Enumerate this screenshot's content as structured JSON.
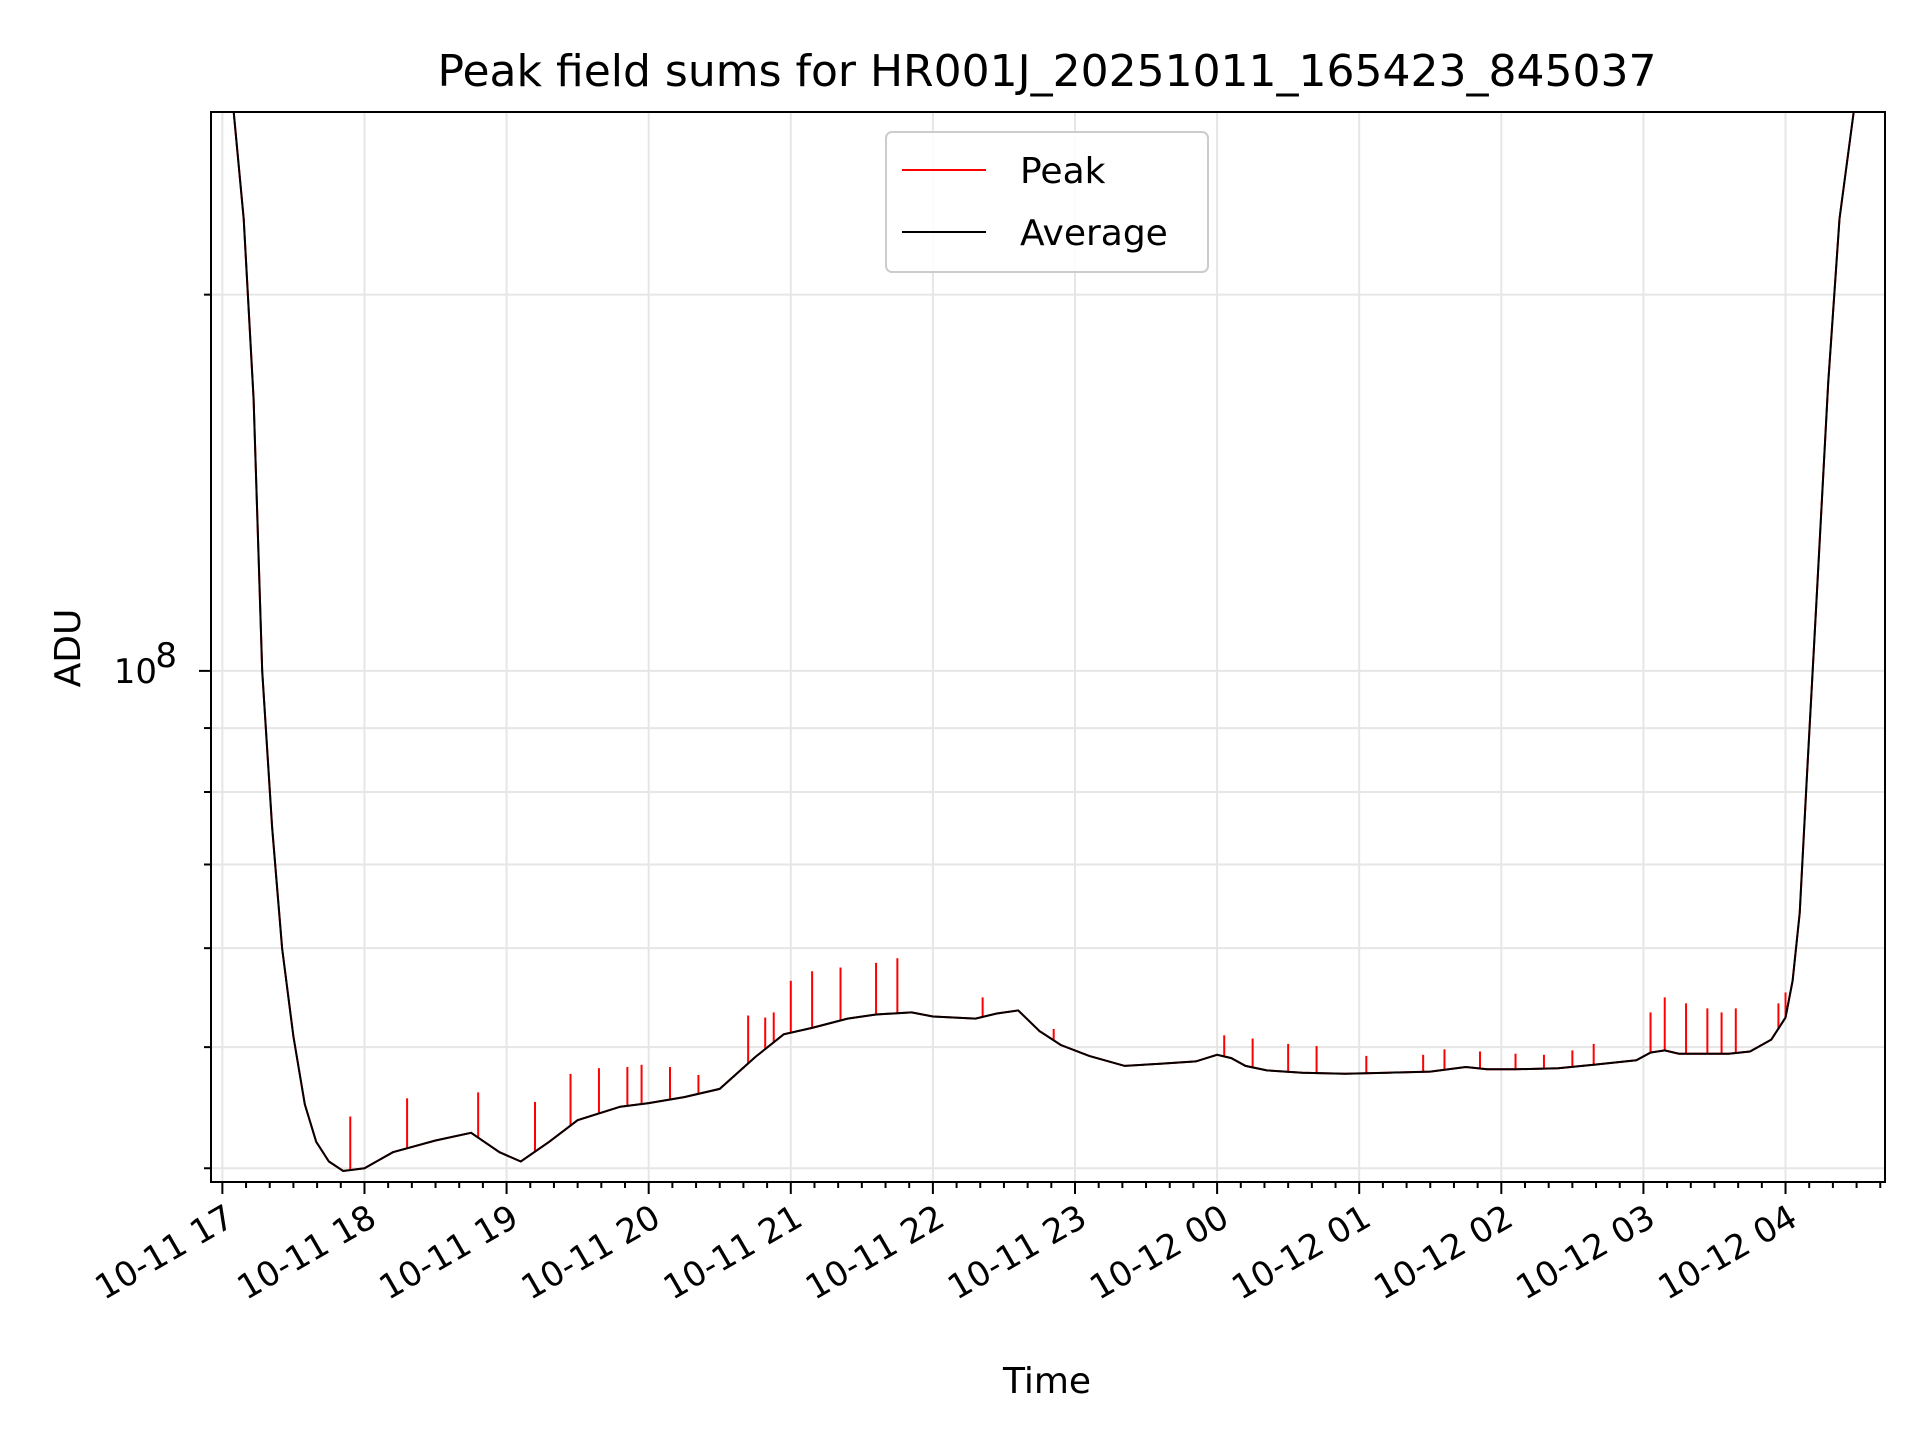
{
  "chart_data": {
    "type": "line",
    "title": "Peak field sums for HR001J_20251011_165423_845037",
    "xlabel": "Time",
    "ylabel": "ADU",
    "yscale": "log",
    "ylim": [
      39000000,
      280000000
    ],
    "xlim": [
      -0.08,
      11.7
    ],
    "grid": true,
    "legend_position": "top-center",
    "x_tick_labels": [
      "10-11 17",
      "10-11 18",
      "10-11 19",
      "10-11 20",
      "10-11 21",
      "10-11 22",
      "10-11 23",
      "10-12 00",
      "10-12 01",
      "10-12 02",
      "10-12 03",
      "10-12 04"
    ],
    "x_tick_values": [
      0,
      1,
      2,
      3,
      4,
      5,
      6,
      7,
      8,
      9,
      10,
      11
    ],
    "y_tick_labels": [
      {
        "base": "10",
        "exp": "8",
        "value": 100000000
      }
    ],
    "y_minor_ticks": [
      40000000,
      50000000,
      60000000,
      70000000,
      80000000,
      90000000,
      200000000
    ],
    "x_unit": "hours since 10-11 17:00",
    "series": [
      {
        "name": "Peak",
        "color": "#ff0000",
        "spike_x": [
          0.9,
          1.3,
          1.8,
          2.2,
          2.45,
          2.65,
          2.85,
          2.95,
          3.15,
          3.35,
          3.7,
          3.82,
          3.88,
          4.0,
          4.15,
          4.35,
          4.6,
          4.75,
          5.35,
          5.75,
          5.85,
          7.05,
          7.25,
          7.5,
          7.7,
          8.05,
          8.45,
          8.6,
          8.85,
          9.1,
          9.3,
          9.5,
          9.65,
          10.05,
          10.15,
          10.3,
          10.45,
          10.55,
          10.65,
          10.95,
          11.0
        ],
        "spike_peak": [
          44000000,
          45500000,
          46000000,
          45200000,
          47600000,
          48100000,
          48200000,
          48400000,
          48200000,
          47500000,
          53000000,
          52800000,
          53300000,
          56500000,
          57500000,
          57900000,
          58400000,
          58900000,
          54800000,
          51400000,
          51700000,
          51100000,
          50800000,
          50300000,
          50100000,
          49200000,
          49300000,
          49800000,
          49600000,
          49400000,
          49300000,
          49700000,
          50300000,
          53300000,
          54800000,
          54200000,
          53700000,
          53300000,
          53700000,
          54200000,
          55300000
        ]
      },
      {
        "name": "Average",
        "color": "#000000",
        "x": [
          0.08,
          0.15,
          0.22,
          0.28,
          0.35,
          0.42,
          0.5,
          0.58,
          0.66,
          0.75,
          0.85,
          1.0,
          1.2,
          1.5,
          1.75,
          1.95,
          2.1,
          2.3,
          2.5,
          2.8,
          3.0,
          3.25,
          3.5,
          3.75,
          3.95,
          4.15,
          4.4,
          4.6,
          4.85,
          5.0,
          5.3,
          5.45,
          5.6,
          5.75,
          5.9,
          6.1,
          6.35,
          6.6,
          6.85,
          7.0,
          7.1,
          7.2,
          7.35,
          7.6,
          7.9,
          8.2,
          8.5,
          8.75,
          8.9,
          9.1,
          9.4,
          9.65,
          9.95,
          10.05,
          10.15,
          10.25,
          10.4,
          10.6,
          10.75,
          10.9,
          11.0,
          11.05,
          11.1,
          11.15,
          11.22,
          11.3,
          11.38,
          11.48,
          11.57
        ],
        "y": [
          280000000,
          230000000,
          165000000,
          100000000,
          75000000,
          60000000,
          51000000,
          45000000,
          42000000,
          40500000,
          39800000,
          40000000,
          41200000,
          42100000,
          42700000,
          41200000,
          40500000,
          42000000,
          43700000,
          44800000,
          45100000,
          45600000,
          46300000,
          49100000,
          51200000,
          51800000,
          52700000,
          53100000,
          53300000,
          52900000,
          52700000,
          53200000,
          53500000,
          51500000,
          50200000,
          49200000,
          48300000,
          48500000,
          48700000,
          49300000,
          49000000,
          48300000,
          47900000,
          47700000,
          47600000,
          47700000,
          47800000,
          48200000,
          48000000,
          48000000,
          48100000,
          48400000,
          48800000,
          49500000,
          49700000,
          49400000,
          49400000,
          49400000,
          49600000,
          50700000,
          52800000,
          56500000,
          64000000,
          82000000,
          115000000,
          170000000,
          230000000,
          280000000,
          280000000
        ]
      }
    ]
  }
}
